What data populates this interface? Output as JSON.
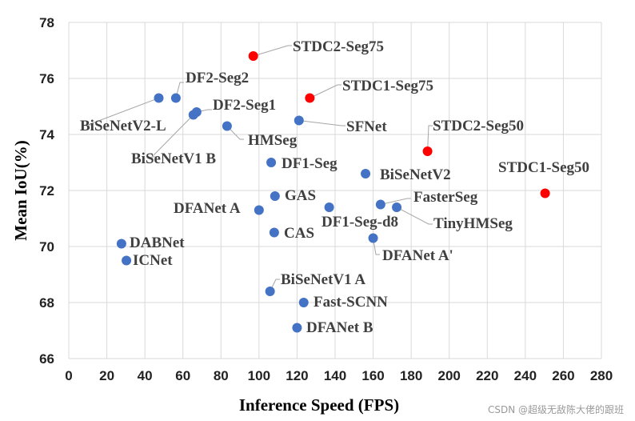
{
  "chart_data": {
    "type": "scatter",
    "xlabel": "Inference Speed (FPS)",
    "ylabel": "Mean IoU(%)",
    "xlim": [
      0,
      280
    ],
    "ylim": [
      66,
      78
    ],
    "xticks": [
      0,
      20,
      40,
      60,
      80,
      100,
      120,
      140,
      160,
      180,
      200,
      220,
      240,
      260,
      280
    ],
    "yticks": [
      66,
      68,
      70,
      72,
      74,
      76,
      78
    ],
    "grid": true,
    "colors": {
      "highlight": "#ff0000",
      "default": "#4472c4"
    },
    "points": [
      {
        "label": "STDC2-Seg75",
        "x": 97.0,
        "y": 76.8,
        "highlight": true
      },
      {
        "label": "STDC1-Seg75",
        "x": 126.7,
        "y": 75.3,
        "highlight": true
      },
      {
        "label": "STDC2-Seg50",
        "x": 188.6,
        "y": 73.4,
        "highlight": true
      },
      {
        "label": "STDC1-Seg50",
        "x": 250.4,
        "y": 71.9,
        "highlight": true
      },
      {
        "label": "DF2-Seg2",
        "x": 56.3,
        "y": 75.3,
        "highlight": false
      },
      {
        "label": "BiSeNetV2-L",
        "x": 47.3,
        "y": 75.3,
        "highlight": false
      },
      {
        "label": "DF2-Seg1",
        "x": 67.2,
        "y": 74.8,
        "highlight": false
      },
      {
        "label": "BiSeNetV1 B",
        "x": 65.5,
        "y": 74.7,
        "highlight": false
      },
      {
        "label": "HMSeg",
        "x": 83.2,
        "y": 74.3,
        "highlight": false
      },
      {
        "label": "SFNet",
        "x": 121.0,
        "y": 74.5,
        "highlight": false
      },
      {
        "label": "DF1-Seg",
        "x": 106.4,
        "y": 73.0,
        "highlight": false
      },
      {
        "label": "BiSeNetV2",
        "x": 156.0,
        "y": 72.6,
        "highlight": false
      },
      {
        "label": "GAS",
        "x": 108.4,
        "y": 71.8,
        "highlight": false
      },
      {
        "label": "DFANet A",
        "x": 100.0,
        "y": 71.3,
        "highlight": false
      },
      {
        "label": "DF1-Seg-d8",
        "x": 136.9,
        "y": 71.4,
        "highlight": false
      },
      {
        "label": "FasterSeg",
        "x": 163.9,
        "y": 71.5,
        "highlight": false
      },
      {
        "label": "TinyHMSeg",
        "x": 172.4,
        "y": 71.4,
        "highlight": false
      },
      {
        "label": "CAS",
        "x": 108.0,
        "y": 70.5,
        "highlight": false
      },
      {
        "label": "DFANet A'",
        "x": 160.0,
        "y": 70.3,
        "highlight": false
      },
      {
        "label": "DABNet",
        "x": 27.7,
        "y": 70.1,
        "highlight": false
      },
      {
        "label": "ICNet",
        "x": 30.3,
        "y": 69.5,
        "highlight": false
      },
      {
        "label": "BiSeNetV1 A",
        "x": 105.8,
        "y": 68.4,
        "highlight": false
      },
      {
        "label": "Fast-SCNN",
        "x": 123.5,
        "y": 68.0,
        "highlight": false
      },
      {
        "label": "DFANet B",
        "x": 120.0,
        "y": 67.1,
        "highlight": false
      }
    ]
  },
  "watermark": "CSDN @超级无敌陈大佬的跟班"
}
